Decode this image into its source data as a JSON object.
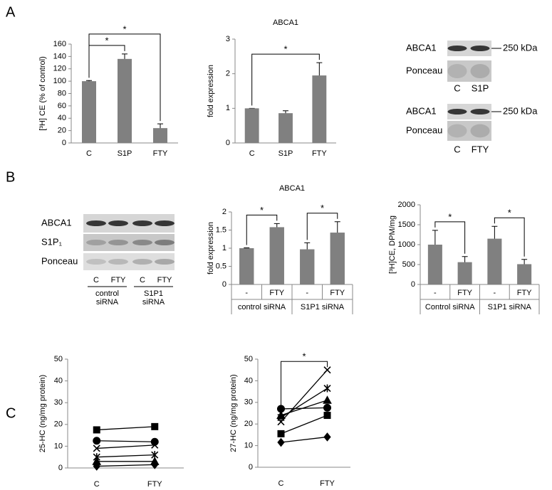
{
  "panel_labels": [
    "A",
    "B",
    "C"
  ],
  "chart_data": [
    {
      "type": "bar",
      "ylabel": "[³H] CE (% of control)",
      "categories": [
        "C",
        "S1P",
        "FTY"
      ],
      "values": [
        100,
        136,
        24
      ],
      "errors": [
        1,
        8,
        7
      ],
      "color": "#808080",
      "ylim": [
        0,
        160
      ],
      "yticks": [
        0,
        20,
        40,
        60,
        80,
        100,
        120,
        140,
        160
      ],
      "significance": [
        {
          "between": [
            0,
            1
          ],
          "label": "*"
        },
        {
          "between": [
            0,
            2
          ],
          "label": "*"
        }
      ]
    },
    {
      "type": "bar",
      "title": "ABCA1",
      "ylabel": "fold expression",
      "categories": [
        "C",
        "S1P",
        "FTY"
      ],
      "values": [
        1,
        0.86,
        1.95
      ],
      "errors": [
        0,
        0.07,
        0.37
      ],
      "color": "#808080",
      "ylim": [
        0,
        3
      ],
      "yticks": [
        0,
        1,
        2,
        3
      ],
      "significance": [
        {
          "between": [
            0,
            2
          ],
          "label": "*"
        }
      ]
    },
    {
      "type": "bar",
      "title": "ABCA1",
      "ylabel": "fold expression",
      "categories": [
        "-",
        "FTY",
        "-",
        "FTY"
      ],
      "groups": [
        {
          "label": "control siRNA",
          "span": 2
        },
        {
          "label": "S1P1 siRNA",
          "span": 2
        }
      ],
      "values": [
        1,
        1.58,
        0.97,
        1.43
      ],
      "errors": [
        0.01,
        0.1,
        0.18,
        0.3
      ],
      "color": "#808080",
      "ylim": [
        0,
        2
      ],
      "yticks": [
        0,
        0.5,
        1,
        1.5,
        2
      ],
      "significance": [
        {
          "between": [
            0,
            1
          ],
          "label": "*"
        },
        {
          "between": [
            2,
            3
          ],
          "label": "*"
        }
      ]
    },
    {
      "type": "bar",
      "ylabel": "[³H]CE, DPM/mg",
      "categories": [
        "-",
        "FTY",
        "-",
        "FTY"
      ],
      "groups": [
        {
          "label": "Control siRNA",
          "span": 2
        },
        {
          "label": "S1P1 siRNA",
          "span": 2
        }
      ],
      "values": [
        1000,
        560,
        1150,
        510
      ],
      "errors": [
        360,
        140,
        310,
        120
      ],
      "color": "#808080",
      "ylim": [
        0,
        2000
      ],
      "yticks": [
        0,
        500,
        1000,
        1500,
        2000
      ],
      "significance": [
        {
          "between": [
            0,
            1
          ],
          "label": "*"
        },
        {
          "between": [
            2,
            3
          ],
          "label": "*"
        }
      ]
    },
    {
      "type": "line",
      "ylabel": "25-HC (ng/mg protein)",
      "categories": [
        "C",
        "FTY"
      ],
      "ylim": [
        0,
        50
      ],
      "yticks": [
        0,
        10,
        20,
        30,
        40,
        50
      ],
      "series": [
        {
          "marker": "square",
          "color": "#000000",
          "values": [
            17.5,
            19
          ]
        },
        {
          "marker": "circle",
          "color": "#000000",
          "values": [
            12.5,
            12
          ]
        },
        {
          "marker": "x",
          "color": "#000000",
          "values": [
            9,
            10.5
          ]
        },
        {
          "marker": "star",
          "color": "#000000",
          "values": [
            5,
            6
          ]
        },
        {
          "marker": "triangle",
          "color": "#000000",
          "values": [
            3,
            3
          ]
        },
        {
          "marker": "diamond",
          "color": "#000000",
          "values": [
            0.8,
            1.5
          ]
        }
      ]
    },
    {
      "type": "line",
      "ylabel": "27-HC (ng/mg protein)",
      "categories": [
        "C",
        "FTY"
      ],
      "ylim": [
        0,
        50
      ],
      "yticks": [
        0,
        10,
        20,
        30,
        40,
        50
      ],
      "series": [
        {
          "marker": "x",
          "color": "#000000",
          "values": [
            21,
            45
          ]
        },
        {
          "marker": "star",
          "color": "#000000",
          "values": [
            23,
            36.5
          ]
        },
        {
          "marker": "triangle",
          "color": "#000000",
          "values": [
            24,
            31
          ]
        },
        {
          "marker": "circle",
          "color": "#000000",
          "values": [
            27,
            27.5
          ]
        },
        {
          "marker": "square",
          "color": "#000000",
          "values": [
            15.5,
            24
          ]
        },
        {
          "marker": "diamond",
          "color": "#000000",
          "values": [
            11.5,
            14
          ]
        }
      ],
      "significance": [
        {
          "between": [
            0,
            1
          ],
          "label": "*"
        }
      ]
    }
  ],
  "blots": [
    {
      "rows": [
        "ABCA1",
        "Ponceau"
      ],
      "lanes": [
        "C",
        "S1P"
      ],
      "size_marker": "250 kDa"
    },
    {
      "rows": [
        "ABCA1",
        "Ponceau"
      ],
      "lanes": [
        "C",
        "FTY"
      ],
      "size_marker": "250 kDa"
    },
    {
      "rows": [
        "ABCA1",
        "S1P₁",
        "Ponceau"
      ],
      "lanes": [
        "C",
        "FTY",
        "C",
        "FTY"
      ],
      "groups": [
        [
          "control",
          "siRNA"
        ],
        [
          "S1P1",
          "siRNA"
        ]
      ]
    }
  ]
}
